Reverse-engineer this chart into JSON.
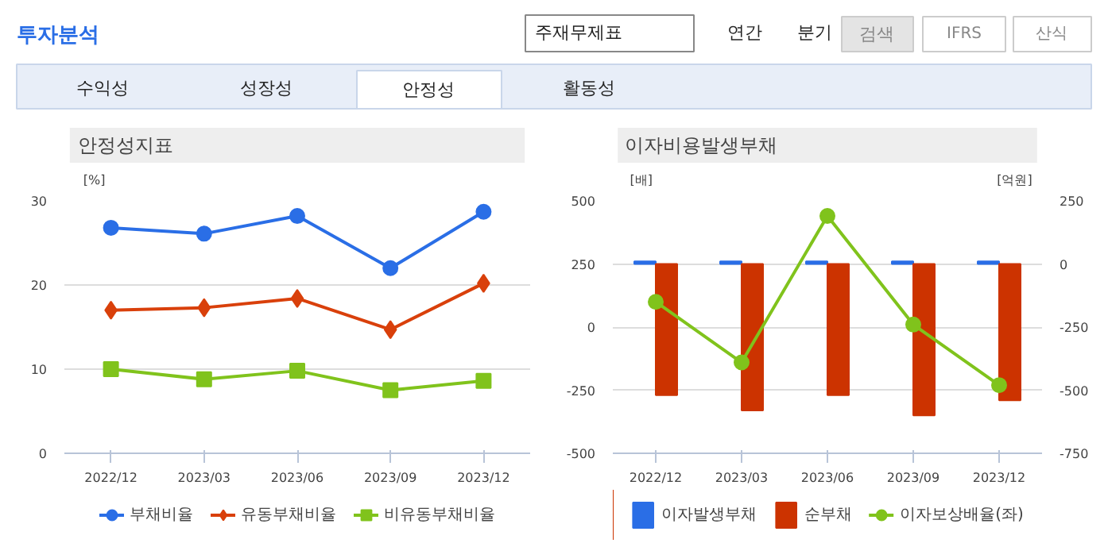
{
  "chart_data": [
    {
      "type": "other",
      "annotations": [
        "투자분석",
        "주재무제표",
        "연간",
        "분기",
        "검색",
        "IFRS",
        "산식",
        "수익성",
        "성장성",
        "안정성",
        "활동성"
      ]
    },
    {
      "type": "line",
      "title": "안정성지표",
      "ylabel": "[%]",
      "categories": [
        "2022/12",
        "2023/03",
        "2023/06",
        "2023/09",
        "2023/12"
      ],
      "ylim": [
        0,
        30
      ],
      "yticks": [
        0,
        10,
        20,
        30
      ],
      "grid": "y",
      "legend": "bottom",
      "series": [
        {
          "name": "부채비율",
          "color": "#2a6ee6",
          "marker": "circle",
          "values": [
            26.8,
            26.1,
            28.2,
            22.0,
            28.7
          ]
        },
        {
          "name": "유동부채비율",
          "color": "#d9400b",
          "marker": "diamond",
          "values": [
            17.0,
            17.3,
            18.4,
            14.7,
            20.2
          ]
        },
        {
          "name": "비유동부채비율",
          "color": "#80c31c",
          "marker": "square",
          "values": [
            10.0,
            8.8,
            9.8,
            7.5,
            8.6
          ]
        }
      ]
    },
    {
      "type": "bar",
      "title": "이자비용발생부채",
      "ylabel": "[배]",
      "y2label": "[억원]",
      "categories": [
        "2022/12",
        "2023/03",
        "2023/06",
        "2023/09",
        "2023/12"
      ],
      "ylim": [
        -500,
        500
      ],
      "yticks": [
        -500,
        -250,
        0,
        250,
        500
      ],
      "y2lim": [
        -750,
        250
      ],
      "y2ticks": [
        -750,
        -500,
        -250,
        0,
        250
      ],
      "grid": "y",
      "legend": "bottom",
      "series": [
        {
          "name": "이자발생부채",
          "color": "#2a6ee6",
          "axis": "y2",
          "values": [
            10,
            10,
            10,
            10,
            10
          ]
        },
        {
          "name": "순부채",
          "color": "#cc3300",
          "axis": "y2",
          "values": [
            -520,
            -580,
            -520,
            -600,
            -540
          ]
        },
        {
          "name": "이자보상배율(좌)",
          "type": "line",
          "color": "#80c31c",
          "marker": "circle",
          "values": [
            100,
            -140,
            440,
            10,
            -230
          ]
        }
      ]
    }
  ]
}
